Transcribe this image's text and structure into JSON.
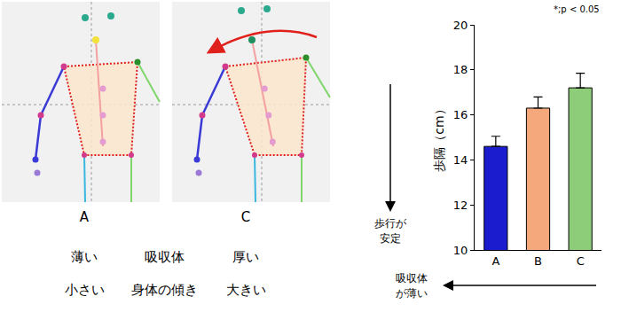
{
  "chart_data": {
    "type": "bar",
    "categories": [
      "A",
      "B",
      "C"
    ],
    "values": [
      14.6,
      16.3,
      17.2
    ],
    "errors": [
      0.45,
      0.5,
      0.65
    ],
    "colors": [
      "#1c1ccf",
      "#f4a87c",
      "#8dcd7a"
    ],
    "ylim": [
      10,
      20
    ],
    "yticks": [
      10,
      12,
      14,
      16,
      18,
      20
    ],
    "y_label": "歩隔（cm）",
    "grid": false,
    "annotations": {
      "note": "*;p < 0.05",
      "y_arrow": [
        "歩行が",
        "安定"
      ],
      "x_arrow": [
        "吸収体",
        "が薄い"
      ]
    }
  },
  "diagram": {
    "panels": [
      "A",
      "C"
    ],
    "rows": [
      [
        "薄い",
        "吸収体",
        "厚い"
      ],
      [
        "小さい",
        "身体の傾き",
        "大きい"
      ]
    ]
  }
}
